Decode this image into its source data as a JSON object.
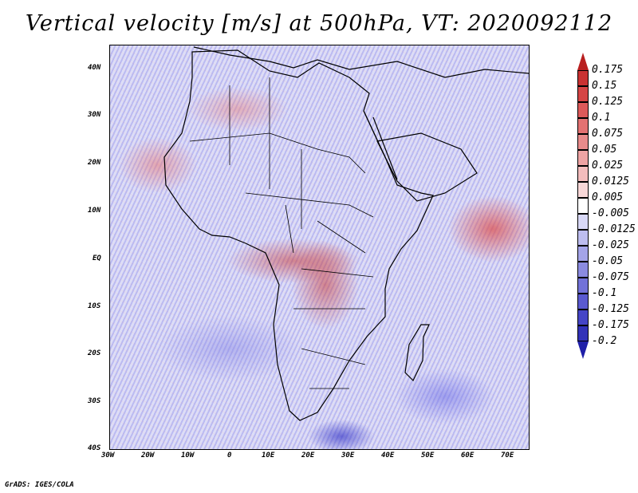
{
  "title": "Vertical velocity [m/s] at 500hPa, VT: 2020092112",
  "map": {
    "lat_labels": [
      "40N",
      "30N",
      "20N",
      "10N",
      "EQ",
      "10S",
      "20S",
      "30S",
      "40S"
    ],
    "lon_labels": [
      "30W",
      "20W",
      "10W",
      "0",
      "10E",
      "20E",
      "30E",
      "40E",
      "50E",
      "60E",
      "70E"
    ]
  },
  "colorbar": {
    "levels": [
      "0.175",
      "0.15",
      "0.125",
      "0.1",
      "0.075",
      "0.05",
      "0.025",
      "0.0125",
      "0.005",
      "-0.005",
      "-0.0125",
      "-0.025",
      "-0.05",
      "-0.075",
      "-0.1",
      "-0.125",
      "-0.175",
      "-0.2"
    ],
    "colors": [
      "#b81f1f",
      "#c93232",
      "#d54545",
      "#dd5a5a",
      "#e37272",
      "#e88b8b",
      "#eea4a4",
      "#f3bdbd",
      "#f8d8d8",
      "#ffffff",
      "#d8d8f6",
      "#bdbdef",
      "#a4a4e8",
      "#8b8be0",
      "#7272d8",
      "#5a5ad0",
      "#4545c6",
      "#3232b8",
      "#1f1fa8"
    ]
  },
  "footer": "GrADS: IGES/COLA"
}
